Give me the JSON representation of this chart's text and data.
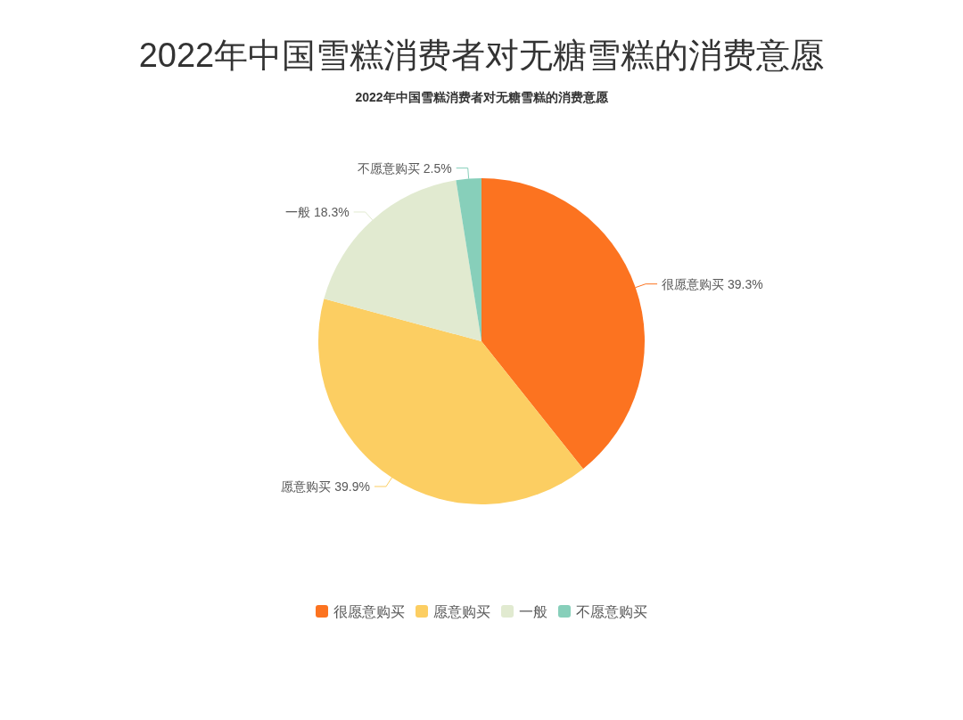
{
  "chart_data": {
    "type": "pie",
    "title": "2022年中国雪糕消费者对无糖雪糕的消费意愿",
    "subtitle": "2022年中国雪糕消费者对无糖雪糕的消费意愿",
    "categories": [
      "很愿意购买",
      "愿意购买",
      "一般",
      "不愿意购买"
    ],
    "values": [
      39.3,
      39.9,
      18.3,
      2.5
    ],
    "colors": [
      "#fc7320",
      "#fcce62",
      "#e1ead0",
      "#87cfba"
    ],
    "value_labels": [
      "很愿意购买 39.3%",
      "愿意购买 39.9%",
      "一般 18.3%",
      "不愿意购买 2.5%"
    ],
    "legend": "bottom"
  }
}
